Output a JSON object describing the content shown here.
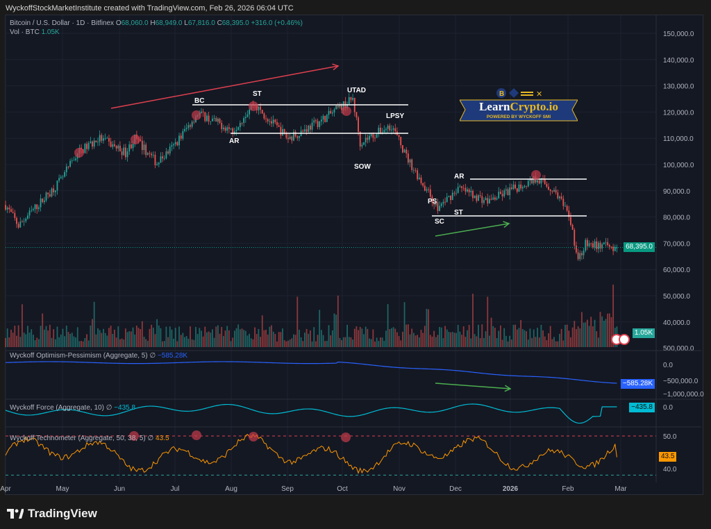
{
  "credit": "WyckoffStockMarketInstitute created with TradingView.com, Feb 26, 2026 06:04 UTC",
  "legend": {
    "symbol": "Bitcoin / U.S. Dollar · 1D · Bitfinex",
    "open_label": "O",
    "open": "68,060.0",
    "high_label": "H",
    "high": "68,949.0",
    "low_label": "L",
    "low": "67,816.0",
    "close_label": "C",
    "close": "68,395.0",
    "change": "+316.0 (+0.46%)",
    "vol_label": "Vol · BTC",
    "vol": "1.05K"
  },
  "indicators": {
    "op": {
      "label": "Wyckoff Optimism-Pessimism (Aggregate, 5)",
      "icon": "∅",
      "value": "−585.28K",
      "color": "#2962ff"
    },
    "force": {
      "label": "Wyckoff Force (Aggregate, 10)",
      "icon": "∅",
      "value": "−435.8",
      "color": "#00bcd4"
    },
    "techno": {
      "label": "Wyckoff Technometer (Aggregate, 50, 38, 5)",
      "icon": "∅",
      "value": "43.5",
      "color": "#ff9800"
    }
  },
  "price_tags": {
    "last": "68,395.0",
    "vol": "1.05K",
    "op": "−585.28K",
    "force": "−435.8",
    "techno": "43.5"
  },
  "colors": {
    "up": "#26a69a",
    "down": "#ef5350",
    "bg": "#141823"
  },
  "annotations": [
    "BC",
    "ST",
    "AR",
    "UTAD",
    "LPSY",
    "SOW",
    "AR",
    "PS",
    "ST",
    "SC"
  ],
  "logo": {
    "title_a": "Learn",
    "title_b": "Crypto.io",
    "sub": "POWERED BY WYCKOFF SMI"
  },
  "brand": "TradingView",
  "chart_data": {
    "type": "candlestick",
    "title": "Bitcoin / U.S. Dollar · 1D · Bitfinex",
    "y_ticks": [
      "150,000.0",
      "140,000.0",
      "130,000.0",
      "120,000.0",
      "110,000.0",
      "100,000.0",
      "90,000.0",
      "80,000.0",
      "70,000.0",
      "60,000.0",
      "50,000.0",
      "40,000.0",
      "500,000.0"
    ],
    "ylim": [
      40000,
      150000
    ],
    "x_ticks": [
      "Apr",
      "May",
      "Jun",
      "Jul",
      "Aug",
      "Sep",
      "Oct",
      "Nov",
      "Dec",
      "2026",
      "Feb",
      "Mar"
    ],
    "price_path": [
      [
        "2025-04-01",
        84600
      ],
      [
        "2025-04-08",
        76700
      ],
      [
        "2025-05-01",
        94000
      ],
      [
        "2025-05-10",
        104500
      ],
      [
        "2025-05-22",
        110000
      ],
      [
        "2025-06-05",
        104500
      ],
      [
        "2025-06-10",
        110000
      ],
      [
        "2025-06-22",
        100500
      ],
      [
        "2025-07-01",
        107000
      ],
      [
        "2025-07-14",
        119600
      ],
      [
        "2025-08-02",
        113000
      ],
      [
        "2025-08-13",
        123000
      ],
      [
        "2025-09-01",
        110000
      ],
      [
        "2025-09-18",
        116400
      ],
      [
        "2025-10-06",
        125000
      ],
      [
        "2025-10-10",
        108500
      ],
      [
        "2025-10-27",
        115000
      ],
      [
        "2025-11-04",
        103000
      ],
      [
        "2025-11-21",
        83300
      ],
      [
        "2025-12-02",
        91000
      ],
      [
        "2025-12-18",
        86000
      ],
      [
        "2026-01-14",
        95000
      ],
      [
        "2026-01-25",
        88600
      ],
      [
        "2026-02-01",
        78000
      ],
      [
        "2026-02-05",
        63500
      ],
      [
        "2026-02-09",
        69600
      ],
      [
        "2026-02-26",
        68395
      ]
    ],
    "last": {
      "open": 68060,
      "high": 68949,
      "low": 67816,
      "close": 68395
    },
    "op_ticks": [
      "0.0",
      "−500,000.0",
      "−1,000,000.0"
    ],
    "force_ticks": [
      "0.0"
    ],
    "techno_ticks": [
      "50.0",
      "40.0"
    ]
  }
}
